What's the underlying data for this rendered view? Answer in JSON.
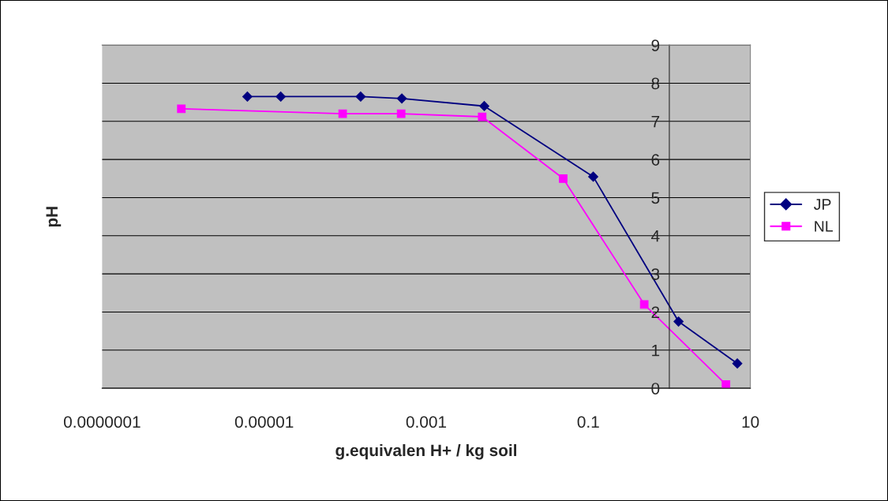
{
  "chart_data": {
    "type": "line",
    "xlabel": "g.equivalen H+ / kg soil",
    "ylabel": "pH",
    "log": "x",
    "xlim": [
      1e-07,
      10
    ],
    "xticks": [
      {
        "value": 1e-07,
        "label": "0.0000001"
      },
      {
        "value": 1e-05,
        "label": "0.00001"
      },
      {
        "value": 0.001,
        "label": "0.001"
      },
      {
        "value": 0.1,
        "label": "0.1"
      },
      10
    ],
    "ylim": [
      0,
      9
    ],
    "yticks": [
      0,
      1,
      2,
      3,
      4,
      5,
      6,
      7,
      8,
      9
    ],
    "grid": "y",
    "legend": "right",
    "series": [
      {
        "name": "JP",
        "color": "#000080",
        "marker": "diamond",
        "x": [
          6.2e-06,
          1.6e-05,
          0.000155,
          0.0005,
          0.0052,
          0.115,
          1.3,
          6.9
        ],
        "values": [
          7.65,
          7.65,
          7.65,
          7.6,
          7.4,
          5.55,
          1.75,
          0.65
        ]
      },
      {
        "name": "NL",
        "color": "#ff00ff",
        "marker": "square",
        "x": [
          9.5e-07,
          9.3e-05,
          0.00049,
          0.0049,
          0.049,
          0.49,
          5.0
        ],
        "values": [
          7.33,
          7.2,
          7.2,
          7.12,
          5.5,
          2.2,
          0.1
        ]
      }
    ]
  }
}
